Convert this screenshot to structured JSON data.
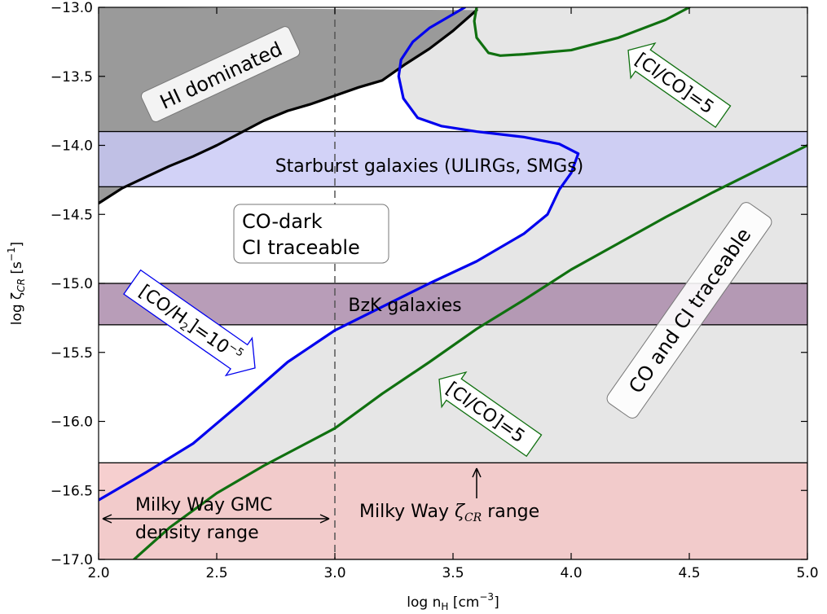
{
  "chart_data": {
    "type": "line",
    "title": "",
    "xlabel": "log n",
    "xlabel_sub": "H",
    "xlabel_units": "[cm",
    "xlabel_units_exp": "−3",
    "xlabel_units_end": "]",
    "ylabel": "log ζ",
    "ylabel_sub": "CR",
    "ylabel_units": "[s",
    "ylabel_units_exp": "−1",
    "ylabel_units_end": "]",
    "xlim": [
      2.0,
      5.0
    ],
    "ylim": [
      -17.0,
      -13.0
    ],
    "xticks": [
      2.0,
      2.5,
      3.0,
      3.5,
      4.0,
      4.5,
      5.0
    ],
    "xtick_labels": [
      "2.0",
      "2.5",
      "3.0",
      "3.5",
      "4.0",
      "4.5",
      "5.0"
    ],
    "yticks": [
      -13.0,
      -13.5,
      -14.0,
      -14.5,
      -15.0,
      -15.5,
      -16.0,
      -16.5,
      -17.0
    ],
    "ytick_labels": [
      "−13.0",
      "−13.5",
      "−14.0",
      "−14.5",
      "−15.0",
      "−15.5",
      "−16.0",
      "−16.5",
      "−17.0"
    ],
    "grid": false,
    "bands": [
      {
        "name": "Starburst galaxies",
        "y0": -14.3,
        "y1": -13.9,
        "color": "#c8c8f5",
        "opacity": 0.82
      },
      {
        "name": "BzK galaxies",
        "y0": -15.3,
        "y1": -15.0,
        "color": "#a888a8",
        "opacity": 0.82
      },
      {
        "name": "Milky Way",
        "y0": -17.0,
        "y1": -16.3,
        "color": "#f4c4c4",
        "opacity": 0.82
      }
    ],
    "vline": {
      "x": 3.0,
      "style": "dashed"
    },
    "series": [
      {
        "role": "HI/H2 transition",
        "color": "#000000",
        "x": [
          2.0,
          2.1,
          2.2,
          2.3,
          2.4,
          2.5,
          2.6,
          2.7,
          2.8,
          2.9,
          3.0,
          3.1,
          3.2,
          3.3,
          3.4,
          3.5,
          3.6
        ],
        "y": [
          -14.42,
          -14.31,
          -14.23,
          -14.15,
          -14.08,
          -14.0,
          -13.91,
          -13.82,
          -13.75,
          -13.7,
          -13.64,
          -13.58,
          -13.53,
          -13.41,
          -13.3,
          -13.17,
          -13.02
        ]
      },
      {
        "role": "[CO/H2]=1e-5",
        "color": "#0000ee",
        "x": [
          2.0,
          2.2,
          2.4,
          2.6,
          2.8,
          3.0,
          3.2,
          3.4,
          3.6,
          3.8,
          3.9,
          3.95,
          4.0,
          4.03,
          3.95,
          3.8,
          3.6,
          3.45,
          3.35,
          3.29,
          3.27,
          3.28,
          3.33,
          3.4,
          3.5,
          3.55
        ],
        "y": [
          -16.57,
          -16.37,
          -16.16,
          -15.87,
          -15.57,
          -15.34,
          -15.17,
          -15.0,
          -14.84,
          -14.64,
          -14.5,
          -14.32,
          -14.2,
          -14.06,
          -13.99,
          -13.94,
          -13.9,
          -13.86,
          -13.8,
          -13.66,
          -13.5,
          -13.38,
          -13.25,
          -13.15,
          -13.05,
          -13.0
        ]
      },
      {
        "role": "[CI/CO]=5 (lower)",
        "color": "#107010",
        "x": [
          2.15,
          2.3,
          2.5,
          2.7,
          2.9,
          3.0,
          3.2,
          3.4,
          3.6,
          3.8,
          4.0,
          4.2,
          4.4,
          4.6,
          4.8,
          5.0
        ],
        "y": [
          -17.0,
          -16.77,
          -16.52,
          -16.32,
          -16.14,
          -16.05,
          -15.8,
          -15.57,
          -15.33,
          -15.12,
          -14.9,
          -14.71,
          -14.52,
          -14.34,
          -14.17,
          -14.0
        ]
      },
      {
        "role": "[CI/CO]=5 (upper)",
        "color": "#107010",
        "x": [
          3.6,
          3.59,
          3.6,
          3.65,
          3.7,
          3.8,
          4.0,
          4.2,
          4.4,
          4.5
        ],
        "y": [
          -13.0,
          -13.1,
          -13.22,
          -13.33,
          -13.35,
          -13.34,
          -13.31,
          -13.22,
          -13.09,
          -13.0
        ]
      }
    ],
    "annotations": {
      "hi_dominated": "HI dominated",
      "starburst": "Starburst galaxies (ULIRGs, SMGs)",
      "co_dark_line1": "CO-dark",
      "co_dark_line2": "CI traceable",
      "bzk": "BzK galaxies",
      "co_ci_traceable": "CO and CI traceable",
      "ci_co_upper": "[CI/CO]=5",
      "ci_co_lower": "[CI/CO]=5",
      "co_h2_main": "[CO/H",
      "co_h2_sub": "2",
      "co_h2_mid": "]=10",
      "co_h2_exp": "−5",
      "mw_gmc_line1": "Milky Way GMC",
      "mw_gmc_line2": "density range",
      "mw_zeta_pre": "Milky Way ",
      "mw_zeta_sym": "ζ",
      "mw_zeta_sub": "CR",
      "mw_zeta_post": " range"
    },
    "colors": {
      "hi_fill": "#9a9a9a",
      "traceable_fill": "#e6e6e6",
      "co_h2_arrow": "#0000ee",
      "ci_co_arrow": "#107010"
    }
  }
}
